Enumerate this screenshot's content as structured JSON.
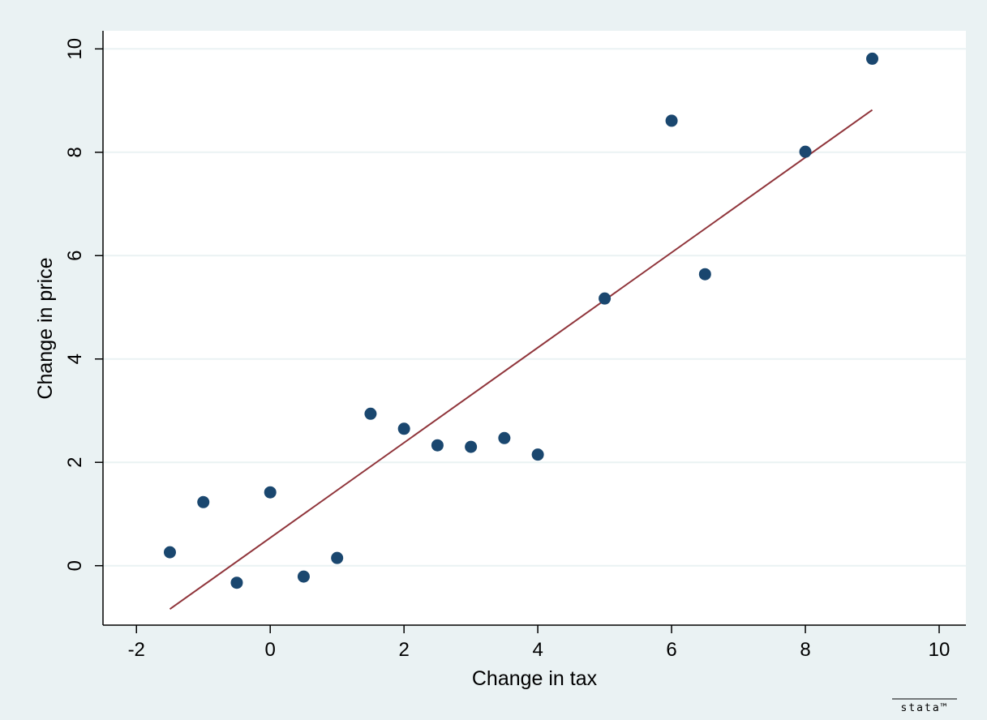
{
  "colors": {
    "background": "#eaf2f3",
    "plot_background": "#ffffff",
    "gridline": "#eaf2f3",
    "marker": "#1a476f",
    "fit_line": "#90353b",
    "axis": "#000000"
  },
  "watermark": "stata™",
  "chart_data": {
    "type": "scatter",
    "title": "",
    "xlabel": "Change in tax",
    "ylabel": "Change in price",
    "xlim": [
      -2.5,
      10.4
    ],
    "ylim": [
      -1.15,
      10.35
    ],
    "x_ticks": [
      -2,
      0,
      2,
      4,
      6,
      8,
      10
    ],
    "y_ticks": [
      0,
      2,
      4,
      6,
      8,
      10
    ],
    "x_tick_labels": [
      "-2",
      "0",
      "2",
      "4",
      "6",
      "8",
      "10"
    ],
    "y_tick_labels": [
      "0",
      "2",
      "4",
      "6",
      "8",
      "10"
    ],
    "grid": "horizontal",
    "legend": "none",
    "series": [
      {
        "type": "scatter",
        "x": [
          -1.5,
          -1,
          -0.5,
          0,
          0.5,
          1,
          1.5,
          2,
          2.5,
          3,
          3.5,
          4,
          5,
          6,
          6.5,
          8,
          9
        ],
        "y": [
          0.26,
          1.23,
          -0.33,
          1.42,
          -0.21,
          0.15,
          2.94,
          2.65,
          2.33,
          2.3,
          2.47,
          2.15,
          5.17,
          8.61,
          5.64,
          8.01,
          9.81
        ]
      },
      {
        "type": "line",
        "x": [
          -1.5,
          9
        ],
        "y": [
          -0.84,
          8.82
        ]
      }
    ]
  }
}
